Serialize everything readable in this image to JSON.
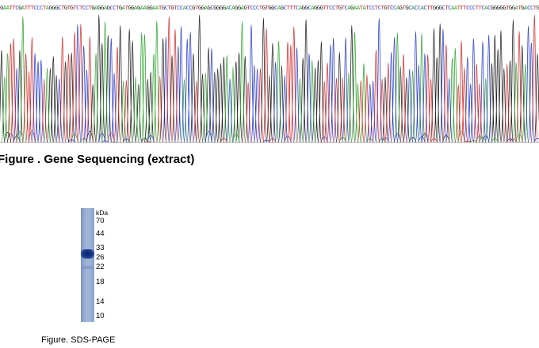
{
  "sequencing": {
    "bases": "GAATTCGATTTCCCTAGGGCTGTGTCTCCTGAGGAGCCTGATGGAGAAGGAATGCTGTCCACCGTGGAGCGGGGACAGGAGTCCCTGTGGCAGCTTTCAGGCAGGGTTCCTGTCAGAATATCCTCTGTCCAGTGCACCACTTGGGCTCAATTTCCCTTCACGGGGGTGGATGACCTG",
    "caption": "Figure . Gene Sequencing (extract)",
    "colors": {
      "A": "#2fa52f",
      "C": "#2a3ecc",
      "G": "#222222",
      "T": "#d42a2a"
    }
  },
  "sds_page": {
    "unit": "kDa",
    "markers": [
      "70",
      "44",
      "33",
      "26",
      "22",
      "18",
      "14",
      "10"
    ],
    "caption": "Figure. SDS-PAGE"
  }
}
